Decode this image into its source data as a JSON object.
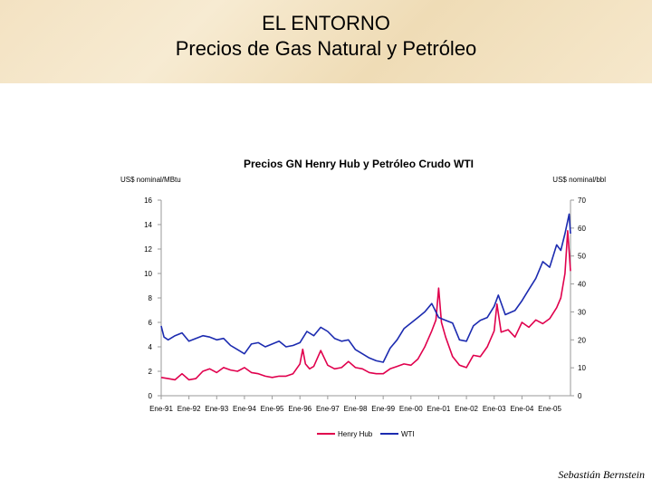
{
  "slide": {
    "title_line1": "EL ENTORNO",
    "title_line2": "Precios de Gas Natural y Petróleo",
    "footer": "Sebastián Bernstein"
  },
  "chart_data": {
    "type": "line",
    "title": "Precios GN Henry Hub y Petróleo Crudo WTI",
    "ylabel_left": "US$ nominal/MBtu",
    "ylabel_right": "US$ nominal/bbl",
    "x_ticks": [
      "Ene-91",
      "Ene-92",
      "Ene-93",
      "Ene-94",
      "Ene-95",
      "Ene-96",
      "Ene-97",
      "Ene-98",
      "Ene-99",
      "Ene-00",
      "Ene-01",
      "Ene-02",
      "Ene-03",
      "Ene-04",
      "Ene-05"
    ],
    "x_range": [
      1991.0,
      2005.75
    ],
    "y_left_ticks": [
      0,
      2,
      4,
      6,
      8,
      10,
      12,
      14,
      16
    ],
    "y_right_ticks": [
      0,
      10,
      20,
      30,
      40,
      50,
      60,
      70
    ],
    "ylim_left": [
      0,
      16
    ],
    "ylim_right": [
      0,
      70
    ],
    "series": [
      {
        "name": "Henry Hub",
        "axis": "left",
        "color": "#e0004d",
        "x": [
          1991.0,
          1991.25,
          1991.5,
          1991.75,
          1992.0,
          1992.25,
          1992.5,
          1992.75,
          1993.0,
          1993.25,
          1993.5,
          1993.75,
          1994.0,
          1994.25,
          1994.5,
          1994.75,
          1995.0,
          1995.25,
          1995.5,
          1995.75,
          1996.0,
          1996.1,
          1996.2,
          1996.35,
          1996.5,
          1996.75,
          1997.0,
          1997.25,
          1997.5,
          1997.75,
          1998.0,
          1998.25,
          1998.5,
          1998.75,
          1999.0,
          1999.25,
          1999.5,
          1999.75,
          2000.0,
          2000.25,
          2000.5,
          2000.75,
          2000.9,
          2001.0,
          2001.1,
          2001.25,
          2001.5,
          2001.75,
          2002.0,
          2002.25,
          2002.5,
          2002.75,
          2003.0,
          2003.1,
          2003.25,
          2003.5,
          2003.75,
          2004.0,
          2004.25,
          2004.5,
          2004.75,
          2005.0,
          2005.25,
          2005.4,
          2005.55,
          2005.65,
          2005.75
        ],
        "values": [
          1.5,
          1.4,
          1.3,
          1.8,
          1.3,
          1.4,
          2.0,
          2.2,
          1.9,
          2.3,
          2.1,
          2.0,
          2.3,
          1.9,
          1.8,
          1.6,
          1.5,
          1.6,
          1.6,
          1.8,
          2.6,
          3.8,
          2.6,
          2.2,
          2.4,
          3.7,
          2.5,
          2.2,
          2.3,
          2.8,
          2.3,
          2.2,
          1.9,
          1.8,
          1.8,
          2.2,
          2.4,
          2.6,
          2.5,
          3.0,
          4.0,
          5.3,
          6.2,
          8.8,
          6.0,
          4.8,
          3.2,
          2.5,
          2.3,
          3.3,
          3.2,
          4.0,
          5.3,
          7.5,
          5.2,
          5.4,
          4.8,
          6.0,
          5.6,
          6.2,
          5.9,
          6.3,
          7.2,
          8.0,
          10.0,
          13.5,
          10.2
        ]
      },
      {
        "name": "WTI",
        "axis": "right",
        "color": "#1c2bb0",
        "x": [
          1991.0,
          1991.1,
          1991.25,
          1991.5,
          1991.75,
          1992.0,
          1992.25,
          1992.5,
          1992.75,
          1993.0,
          1993.25,
          1993.5,
          1993.75,
          1994.0,
          1994.25,
          1994.5,
          1994.75,
          1995.0,
          1995.25,
          1995.5,
          1995.75,
          1996.0,
          1996.25,
          1996.5,
          1996.75,
          1997.0,
          1997.25,
          1997.5,
          1997.75,
          1998.0,
          1998.25,
          1998.5,
          1998.75,
          1999.0,
          1999.25,
          1999.5,
          1999.75,
          2000.0,
          2000.25,
          2000.5,
          2000.75,
          2001.0,
          2001.25,
          2001.5,
          2001.75,
          2002.0,
          2002.25,
          2002.5,
          2002.75,
          2003.0,
          2003.15,
          2003.4,
          2003.75,
          2004.0,
          2004.25,
          2004.5,
          2004.75,
          2005.0,
          2005.25,
          2005.4,
          2005.55,
          2005.7,
          2005.75
        ],
        "values": [
          25.0,
          21.0,
          20.0,
          21.5,
          22.5,
          19.5,
          20.5,
          21.5,
          21.0,
          20.0,
          20.5,
          18.0,
          16.5,
          15.0,
          18.5,
          19.0,
          17.5,
          18.5,
          19.5,
          17.5,
          18.0,
          19.0,
          23.0,
          21.5,
          24.5,
          23.0,
          20.5,
          19.5,
          20.0,
          16.5,
          15.0,
          13.5,
          12.5,
          12.0,
          17.0,
          20.0,
          24.0,
          26.0,
          28.0,
          30.0,
          33.0,
          28.0,
          27.0,
          26.0,
          20.0,
          19.5,
          25.0,
          27.0,
          28.0,
          32.0,
          36.0,
          29.0,
          30.5,
          34.0,
          38.0,
          42.0,
          48.0,
          46.0,
          54.0,
          52.0,
          58.0,
          65.0,
          58.0
        ]
      }
    ],
    "legend": {
      "position": "bottom",
      "entries": [
        "Henry Hub",
        "WTI"
      ]
    },
    "grid": false
  }
}
